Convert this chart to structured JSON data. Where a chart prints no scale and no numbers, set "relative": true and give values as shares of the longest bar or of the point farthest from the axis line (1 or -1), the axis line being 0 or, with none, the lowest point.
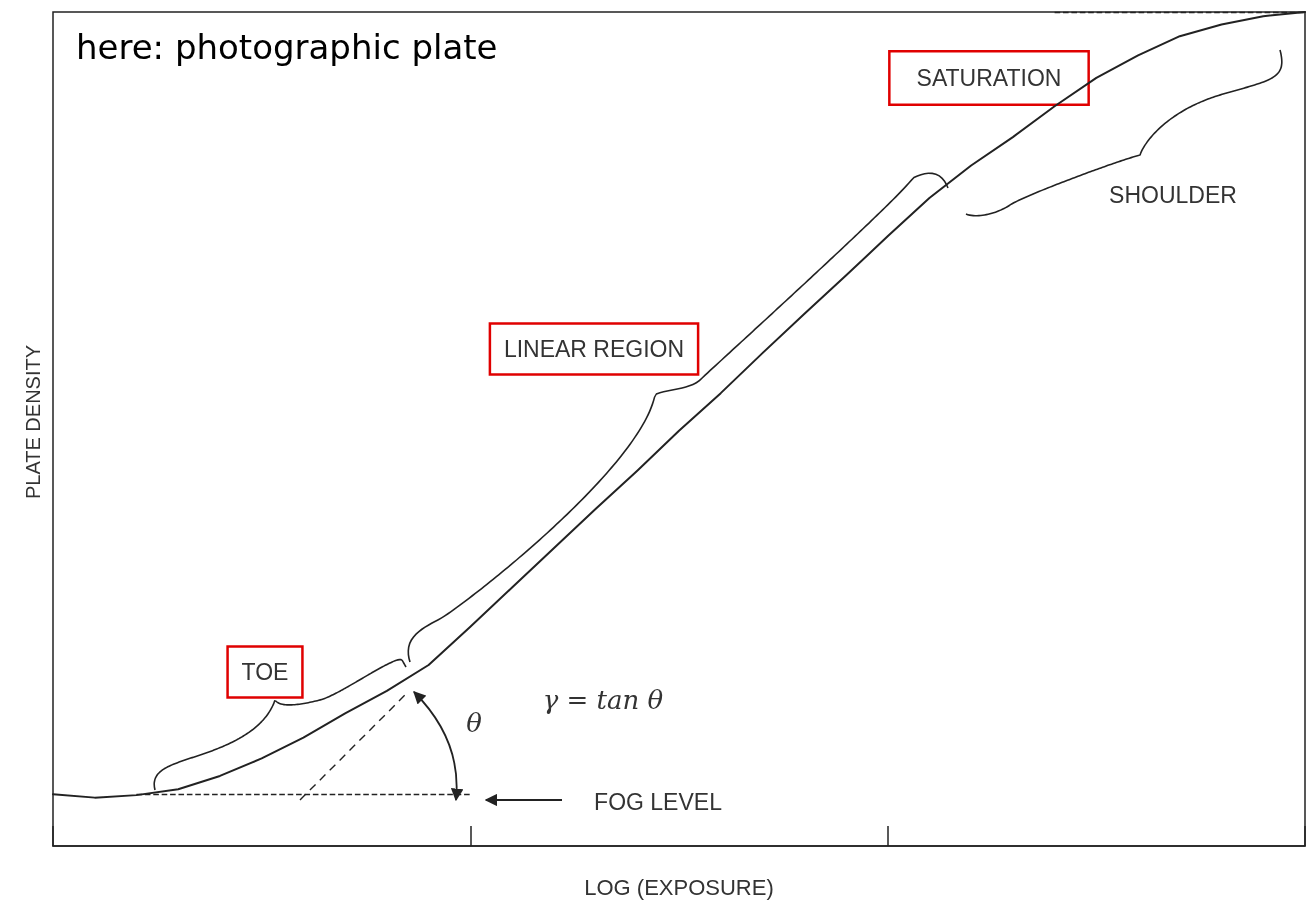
{
  "chart_data": {
    "type": "line",
    "title": "here: photographic plate",
    "xlabel": "LOG (EXPOSURE)",
    "ylabel": "PLATE DENSITY",
    "relative": true,
    "marker": "none",
    "categories": [
      null,
      null,
      null,
      null,
      null,
      null,
      null,
      null,
      null,
      null,
      null,
      null,
      null,
      null,
      null,
      null,
      null,
      null,
      null,
      null,
      null,
      null,
      null,
      null,
      null,
      null,
      null,
      null,
      null,
      null,
      null
    ],
    "series": [
      {
        "color": "#222222",
        "values": [
          0.062,
          0.058,
          0.061,
          0.068,
          0.084,
          0.105,
          0.13,
          0.159,
          0.186,
          0.217,
          0.263,
          0.31,
          0.357,
          0.404,
          0.45,
          0.498,
          0.543,
          0.591,
          0.638,
          0.684,
          0.731,
          0.777,
          0.816,
          0.85,
          0.887,
          0.921,
          0.948,
          0.971,
          0.985,
          0.995,
          1.0
        ]
      }
    ],
    "ref_lines": [
      {
        "axis": "y",
        "value": 0.062,
        "line_style": "dashed",
        "color": "#222222"
      },
      {
        "axis": "y",
        "value": 1.0,
        "label": "SATURATION",
        "line_style": "dashed",
        "color": "#222222"
      }
    ],
    "annotations": [
      "FOG LEVEL",
      "TOE",
      "LINEAR REGION",
      "SHOULDER",
      "θ",
      "γ = tan θ"
    ]
  }
}
